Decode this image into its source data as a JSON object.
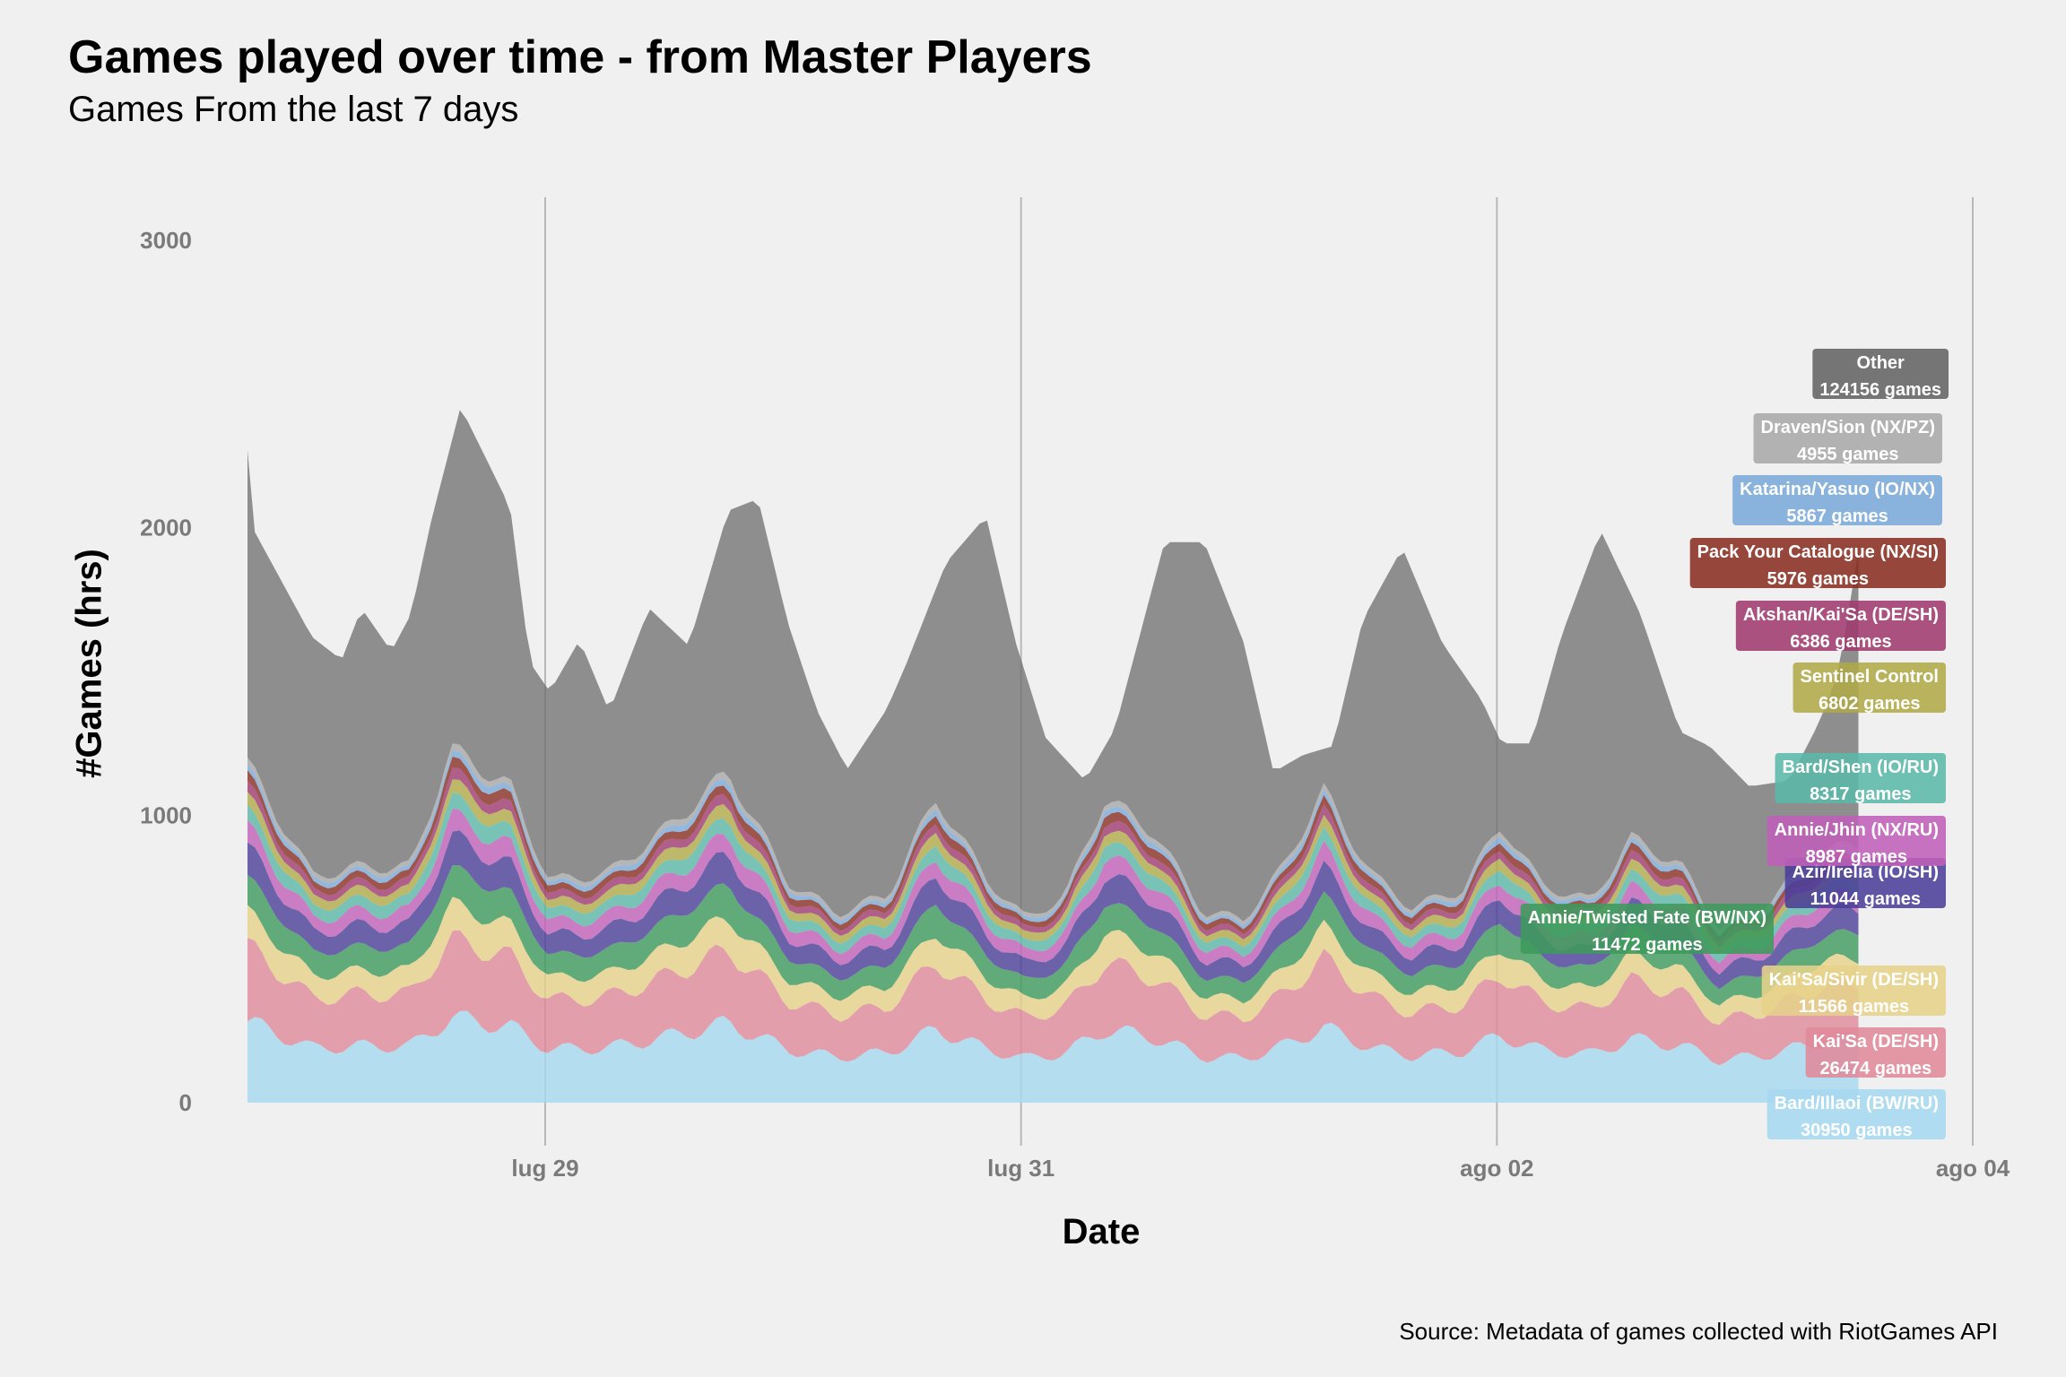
{
  "title": "Games played over time - from Master Players",
  "subtitle": "Games From the last 7 days",
  "caption": "Source: Metadata of games collected with RiotGames API",
  "chart_data": {
    "type": "area",
    "stacked": true,
    "xlabel": "Date",
    "ylabel": "#Games (hrs)",
    "ylim": [
      0,
      3000
    ],
    "yticks": [
      0,
      1000,
      2000,
      3000
    ],
    "xlim": [
      "2022-07-27T17:30",
      "2022-08-04T00:00"
    ],
    "xticks": [
      {
        "date": "2022-07-29",
        "label": "lug 29"
      },
      {
        "date": "2022-07-31",
        "label": "lug 31"
      },
      {
        "date": "2022-08-02",
        "label": "ago 02"
      },
      {
        "date": "2022-08-04",
        "label": "ago 04"
      }
    ],
    "grid": "vertical major lines only",
    "legend": "direct labels at right end of each band",
    "series": [
      {
        "name": "Bard/Illaoi (BW/RU)",
        "total_label": "30950 games",
        "color": "#a6d8f0"
      },
      {
        "name": "Kai'Sa (DE/SH)",
        "total_label": "26474 games",
        "color": "#e08a9a"
      },
      {
        "name": "Kai'Sa/Sivir (DE/SH)",
        "total_label": "11566 games",
        "color": "#e6d28a"
      },
      {
        "name": "Annie/Twisted Fate (BW/NX)",
        "total_label": "11472 games",
        "color": "#3d9a5c"
      },
      {
        "name": "Azir/Irelia (IO/SH)",
        "total_label": "11044 games",
        "color": "#4a3f98"
      },
      {
        "name": "Annie/Jhin (NX/RU)",
        "total_label": "8987 games",
        "color": "#c060b8"
      },
      {
        "name": "Bard/Shen (IO/RU)",
        "total_label": "8317 games",
        "color": "#5ab8a8"
      },
      {
        "name": "Sentinel Control",
        "total_label": "6802 games",
        "color": "#b0aa48"
      },
      {
        "name": "Akshan/Kai'Sa (DE/SH)",
        "total_label": "6386 games",
        "color": "#a03a70"
      },
      {
        "name": "Pack Your Catalogue (NX/SI)",
        "total_label": "5976 games",
        "color": "#8a2e22"
      },
      {
        "name": "Katarina/Yasuo (IO/NX)",
        "total_label": "5867 games",
        "color": "#7aaad8"
      },
      {
        "name": "Draven/Sion (NX/PZ)",
        "total_label": "4955 games",
        "color": "#a8a8a8"
      },
      {
        "name": "Other",
        "total_label": "124156 games",
        "color": "#6e6e6e"
      }
    ],
    "total_by_time": {
      "x": [
        "2022-07-27T17:30",
        "2022-07-27T18:00",
        "2022-07-28T00:00",
        "2022-07-28T03:00",
        "2022-07-28T05:00",
        "2022-07-28T08:00",
        "2022-07-28T10:00",
        "2022-07-28T12:00",
        "2022-07-28T15:00",
        "2022-07-28T20:00",
        "2022-07-28T22:00",
        "2022-07-29T00:00",
        "2022-07-29T03:00",
        "2022-07-29T06:00",
        "2022-07-29T10:00",
        "2022-07-29T14:00",
        "2022-07-29T18:00",
        "2022-07-29T21:00",
        "2022-07-30T00:00",
        "2022-07-30T03:00",
        "2022-07-30T06:00",
        "2022-07-30T10:00",
        "2022-07-30T12:00",
        "2022-07-30T16:00",
        "2022-07-30T20:00",
        "2022-07-30T23:00",
        "2022-07-31T02:00",
        "2022-07-31T06:00",
        "2022-07-31T09:00",
        "2022-07-31T14:00",
        "2022-07-31T18:00",
        "2022-07-31T22:00",
        "2022-08-01T01:00",
        "2022-08-01T04:00",
        "2022-08-01T07:00",
        "2022-08-01T10:00",
        "2022-08-01T14:00",
        "2022-08-01T18:00",
        "2022-08-01T22:00",
        "2022-08-02T00:00",
        "2022-08-02T03:00",
        "2022-08-02T06:00",
        "2022-08-02T10:00",
        "2022-08-02T14:00",
        "2022-08-02T18:00",
        "2022-08-02T21:00",
        "2022-08-03T01:00",
        "2022-08-03T05:00",
        "2022-08-03T08:00",
        "2022-08-03T10:00",
        "2022-08-03T12:00"
      ],
      "y": [
        2270,
        2000,
        1620,
        1540,
        1720,
        1570,
        1700,
        2020,
        2420,
        2070,
        1530,
        1430,
        1610,
        1360,
        1720,
        1590,
        2060,
        2100,
        1670,
        1360,
        1160,
        1370,
        1530,
        1880,
        2040,
        1600,
        1270,
        1120,
        1300,
        1950,
        1950,
        1600,
        1150,
        1210,
        1240,
        1680,
        1930,
        1600,
        1400,
        1250,
        1250,
        1620,
        1990,
        1700,
        1290,
        1240,
        1100,
        1120,
        1320,
        1500,
        1920
      ]
    },
    "stacked_top_colored_by_time": {
      "x": [
        "2022-07-27T17:30",
        "2022-07-28T00:00",
        "2022-07-28T05:00",
        "2022-07-28T10:00",
        "2022-07-28T14:00",
        "2022-07-28T20:00",
        "2022-07-29T00:00",
        "2022-07-29T06:00",
        "2022-07-29T12:00",
        "2022-07-29T18:00",
        "2022-07-30T00:00",
        "2022-07-30T05:00",
        "2022-07-30T10:00",
        "2022-07-30T15:00",
        "2022-07-30T20:00",
        "2022-07-31T00:00",
        "2022-07-31T04:00",
        "2022-07-31T08:00",
        "2022-07-31T13:00",
        "2022-07-31T18:00",
        "2022-07-31T22:00",
        "2022-08-01T02:00",
        "2022-08-01T06:00",
        "2022-08-01T11:00",
        "2022-08-01T15:00",
        "2022-08-01T20:00",
        "2022-08-02T00:00",
        "2022-08-02T04:00",
        "2022-08-02T09:00",
        "2022-08-02T13:00",
        "2022-08-02T18:00",
        "2022-08-02T22:00",
        "2022-08-03T03:00",
        "2022-08-03T08:00",
        "2022-08-03T12:00"
      ],
      "y": [
        1180,
        790,
        820,
        820,
        1230,
        1100,
        770,
        800,
        960,
        1150,
        770,
        660,
        720,
        1060,
        780,
        640,
        720,
        1060,
        940,
        660,
        640,
        820,
        1090,
        790,
        680,
        740,
        970,
        760,
        700,
        920,
        830,
        610,
        700,
        870,
        900
      ]
    }
  }
}
